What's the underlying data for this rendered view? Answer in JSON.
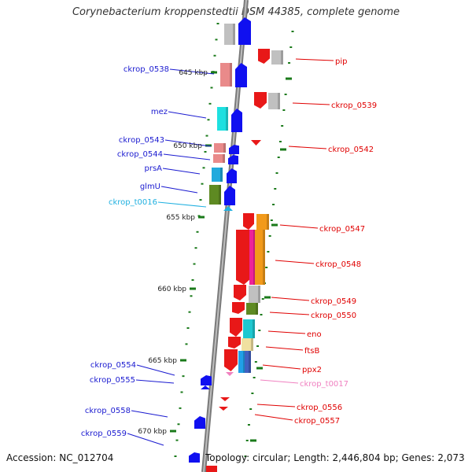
{
  "title": "Corynebacterium kroppenstedtii DSM 44385, complete genome",
  "footer": {
    "accession": "Accession: NC_012704",
    "topology": "Topology: circular; Length: 2,446,804 bp; Genes: 2,073"
  },
  "colors": {
    "left_label": "#1a1ad0",
    "right_label": "#e00000",
    "trna_left": "#20b0e0",
    "trna_right": "#f080c0",
    "tick": "#1a7a1a",
    "backbone": "#888888"
  },
  "kbp_marks": [
    {
      "label": "645 kbp"
    },
    {
      "label": "650 kbp"
    },
    {
      "label": "655 kbp"
    },
    {
      "label": "660 kbp"
    },
    {
      "label": "665 kbp"
    },
    {
      "label": "670 kbp"
    }
  ],
  "left_genes": [
    {
      "label": "ckrop_0538"
    },
    {
      "label": "mez"
    },
    {
      "label": "ckrop_0543"
    },
    {
      "label": "ckrop_0544"
    },
    {
      "label": "prsA"
    },
    {
      "label": "glmU"
    },
    {
      "label": "ckrop_t0016"
    },
    {
      "label": "ckrop_0554"
    },
    {
      "label": "ckrop_0555"
    },
    {
      "label": "ckrop_0558"
    },
    {
      "label": "ckrop_0559"
    }
  ],
  "right_genes": [
    {
      "label": "pip"
    },
    {
      "label": "ckrop_0539"
    },
    {
      "label": "ckrop_0542"
    },
    {
      "label": "ckrop_0547"
    },
    {
      "label": "ckrop_0548"
    },
    {
      "label": "ckrop_0549"
    },
    {
      "label": "ckrop_0550"
    },
    {
      "label": "eno"
    },
    {
      "label": "ftsB"
    },
    {
      "label": "ppx2"
    },
    {
      "label": "ckrop_t0017"
    },
    {
      "label": "ckrop_0556"
    },
    {
      "label": "ckrop_0557"
    }
  ]
}
